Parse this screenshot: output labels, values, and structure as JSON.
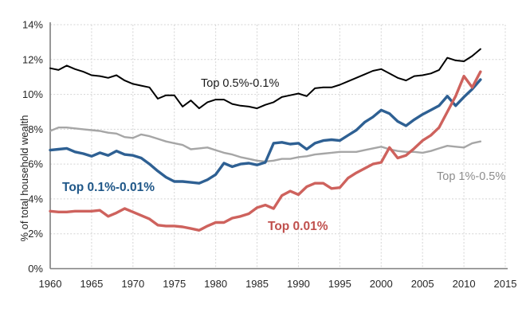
{
  "figure": {
    "kind": "line chart",
    "description": "Wealth shares of top percentile groups over time"
  },
  "chart_data": {
    "type": "line",
    "title": "",
    "xlabel": "",
    "ylabel": "% of total household wealth",
    "xlim": [
      1960,
      2015
    ],
    "ylim": [
      0,
      14
    ],
    "grid": true,
    "legend_position": "inline-labels",
    "x_ticks": [
      1960,
      1965,
      1970,
      1975,
      1980,
      1985,
      1990,
      1995,
      2000,
      2005,
      2010,
      2015
    ],
    "x_tick_labels": [
      "1960",
      "1965",
      "1970",
      "1975",
      "1980",
      "1985",
      "1990",
      "1995",
      "2000",
      "2005",
      "2010",
      "2015"
    ],
    "y_ticks": [
      0,
      2,
      4,
      6,
      8,
      10,
      12,
      14
    ],
    "y_tick_labels": [
      "0%",
      "2%",
      "4%",
      "6%",
      "8%",
      "10%",
      "12%",
      "14%"
    ],
    "x": {
      "start": 1960,
      "step": 1,
      "end": 2012
    },
    "series": [
      {
        "name": "Top 1%-0.5%",
        "color": "#a6a6a6",
        "label_color": "#8c8c8c",
        "label_bold": false,
        "line_width": 2.4,
        "values": [
          7.9,
          8.1,
          8.1,
          8.05,
          8.0,
          7.95,
          7.9,
          7.8,
          7.75,
          7.55,
          7.5,
          7.7,
          7.6,
          7.45,
          7.3,
          7.2,
          7.1,
          6.85,
          6.9,
          6.95,
          6.8,
          6.65,
          6.55,
          6.4,
          6.3,
          6.2,
          6.15,
          6.2,
          6.3,
          6.3,
          6.4,
          6.45,
          6.55,
          6.6,
          6.65,
          6.7,
          6.7,
          6.7,
          6.8,
          6.9,
          7.0,
          6.85,
          6.75,
          6.7,
          6.7,
          6.65,
          6.75,
          6.9,
          7.05,
          7.0,
          6.95,
          7.2,
          7.3
        ]
      },
      {
        "name": "Top 0.5%-0.1%",
        "color": "#000000",
        "label_color": "#1a1a1a",
        "label_bold": false,
        "line_width": 2.0,
        "values": [
          11.5,
          11.4,
          11.65,
          11.45,
          11.3,
          11.1,
          11.05,
          10.95,
          11.1,
          10.8,
          10.6,
          10.5,
          10.4,
          9.75,
          9.95,
          9.95,
          9.3,
          9.65,
          9.2,
          9.55,
          9.7,
          9.7,
          9.45,
          9.35,
          9.3,
          9.2,
          9.4,
          9.55,
          9.85,
          9.95,
          10.05,
          9.9,
          10.35,
          10.4,
          10.4,
          10.55,
          10.75,
          10.95,
          11.15,
          11.35,
          11.45,
          11.2,
          10.95,
          10.8,
          11.05,
          11.1,
          11.2,
          11.4,
          12.1,
          11.95,
          11.9,
          12.2,
          12.6
        ]
      },
      {
        "name": "Top 0.1%-0.01%",
        "color": "#2e6093",
        "label_color": "#1f5788",
        "label_bold": true,
        "line_width": 3.4,
        "values": [
          6.8,
          6.85,
          6.9,
          6.7,
          6.6,
          6.45,
          6.65,
          6.5,
          6.75,
          6.55,
          6.5,
          6.35,
          6.0,
          5.6,
          5.25,
          5.0,
          5.0,
          4.95,
          4.9,
          5.1,
          5.4,
          6.05,
          5.85,
          6.0,
          6.05,
          5.95,
          6.1,
          7.2,
          7.25,
          7.15,
          7.2,
          6.85,
          7.2,
          7.35,
          7.4,
          7.35,
          7.65,
          7.95,
          8.4,
          8.7,
          9.1,
          8.9,
          8.45,
          8.2,
          8.55,
          8.85,
          9.1,
          9.35,
          9.9,
          9.35,
          9.85,
          10.3,
          10.85
        ]
      },
      {
        "name": "Top 0.01%",
        "color": "#ce625d",
        "label_color": "#c0504d",
        "label_bold": true,
        "line_width": 3.4,
        "values": [
          3.3,
          3.25,
          3.25,
          3.3,
          3.3,
          3.3,
          3.35,
          3.0,
          3.2,
          3.45,
          3.25,
          3.05,
          2.85,
          2.5,
          2.45,
          2.45,
          2.4,
          2.3,
          2.2,
          2.45,
          2.65,
          2.65,
          2.9,
          3.0,
          3.15,
          3.5,
          3.65,
          3.45,
          4.2,
          4.45,
          4.25,
          4.7,
          4.9,
          4.9,
          4.6,
          4.65,
          5.2,
          5.5,
          5.75,
          6.0,
          6.1,
          6.95,
          6.35,
          6.5,
          6.9,
          7.35,
          7.65,
          8.1,
          9.0,
          9.9,
          11.05,
          10.4,
          11.3
        ]
      }
    ],
    "style": {
      "axis_color": "#7f7f7f",
      "gridline_color": "#d4d4d4",
      "tick_label_color": "#262626",
      "background": "#ffffff"
    }
  }
}
